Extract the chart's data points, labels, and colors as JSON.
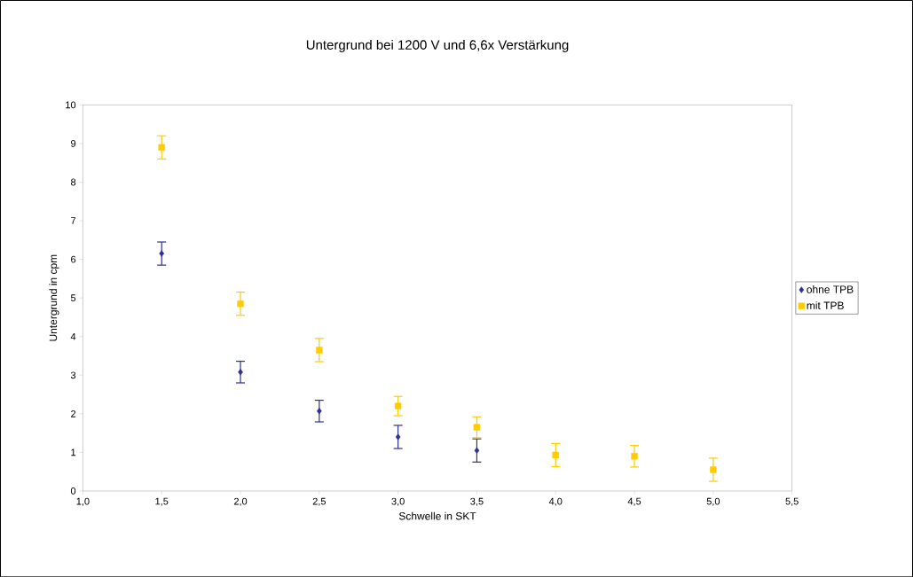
{
  "chart_data": {
    "type": "scatter",
    "title": "Untergrund bei 1200 V und 6,6x Verstärkung",
    "xlabel": "Schwelle in SKT",
    "ylabel": "Untergrund in cpm",
    "xlim": [
      1.0,
      5.5
    ],
    "xticks": [
      {
        "value": 1.0,
        "label": "1,0"
      },
      {
        "value": 1.5,
        "label": "1,5"
      },
      {
        "value": 2.0,
        "label": "2,0"
      },
      {
        "value": 2.5,
        "label": "2,5"
      },
      {
        "value": 3.0,
        "label": "3,0"
      },
      {
        "value": 3.5,
        "label": "3,5"
      },
      {
        "value": 4.0,
        "label": "4,0"
      },
      {
        "value": 4.5,
        "label": "4,5"
      },
      {
        "value": 5.0,
        "label": "5,0"
      },
      {
        "value": 5.5,
        "label": "5,5"
      }
    ],
    "ylim": [
      0,
      10
    ],
    "yticks": [
      0,
      1,
      2,
      3,
      4,
      5,
      6,
      7,
      8,
      9,
      10
    ],
    "grid": false,
    "legend": "right",
    "series": [
      {
        "name": "ohne TPB",
        "color": "#2e3192",
        "marker": "diamond",
        "x": [
          1.5,
          2.0,
          2.5,
          3.0,
          3.5
        ],
        "values": [
          6.15,
          3.08,
          2.07,
          1.4,
          1.05
        ],
        "errors": [
          0.3,
          0.28,
          0.28,
          0.3,
          0.3
        ]
      },
      {
        "name": "mit TPB",
        "color": "#ffcc00",
        "marker": "square",
        "x": [
          1.5,
          2.0,
          2.5,
          3.0,
          3.5,
          4.0,
          4.5,
          5.0
        ],
        "values": [
          8.9,
          4.85,
          3.65,
          2.2,
          1.65,
          0.93,
          0.9,
          0.55
        ],
        "errors": [
          0.3,
          0.3,
          0.3,
          0.25,
          0.27,
          0.3,
          0.28,
          0.3
        ]
      }
    ]
  }
}
